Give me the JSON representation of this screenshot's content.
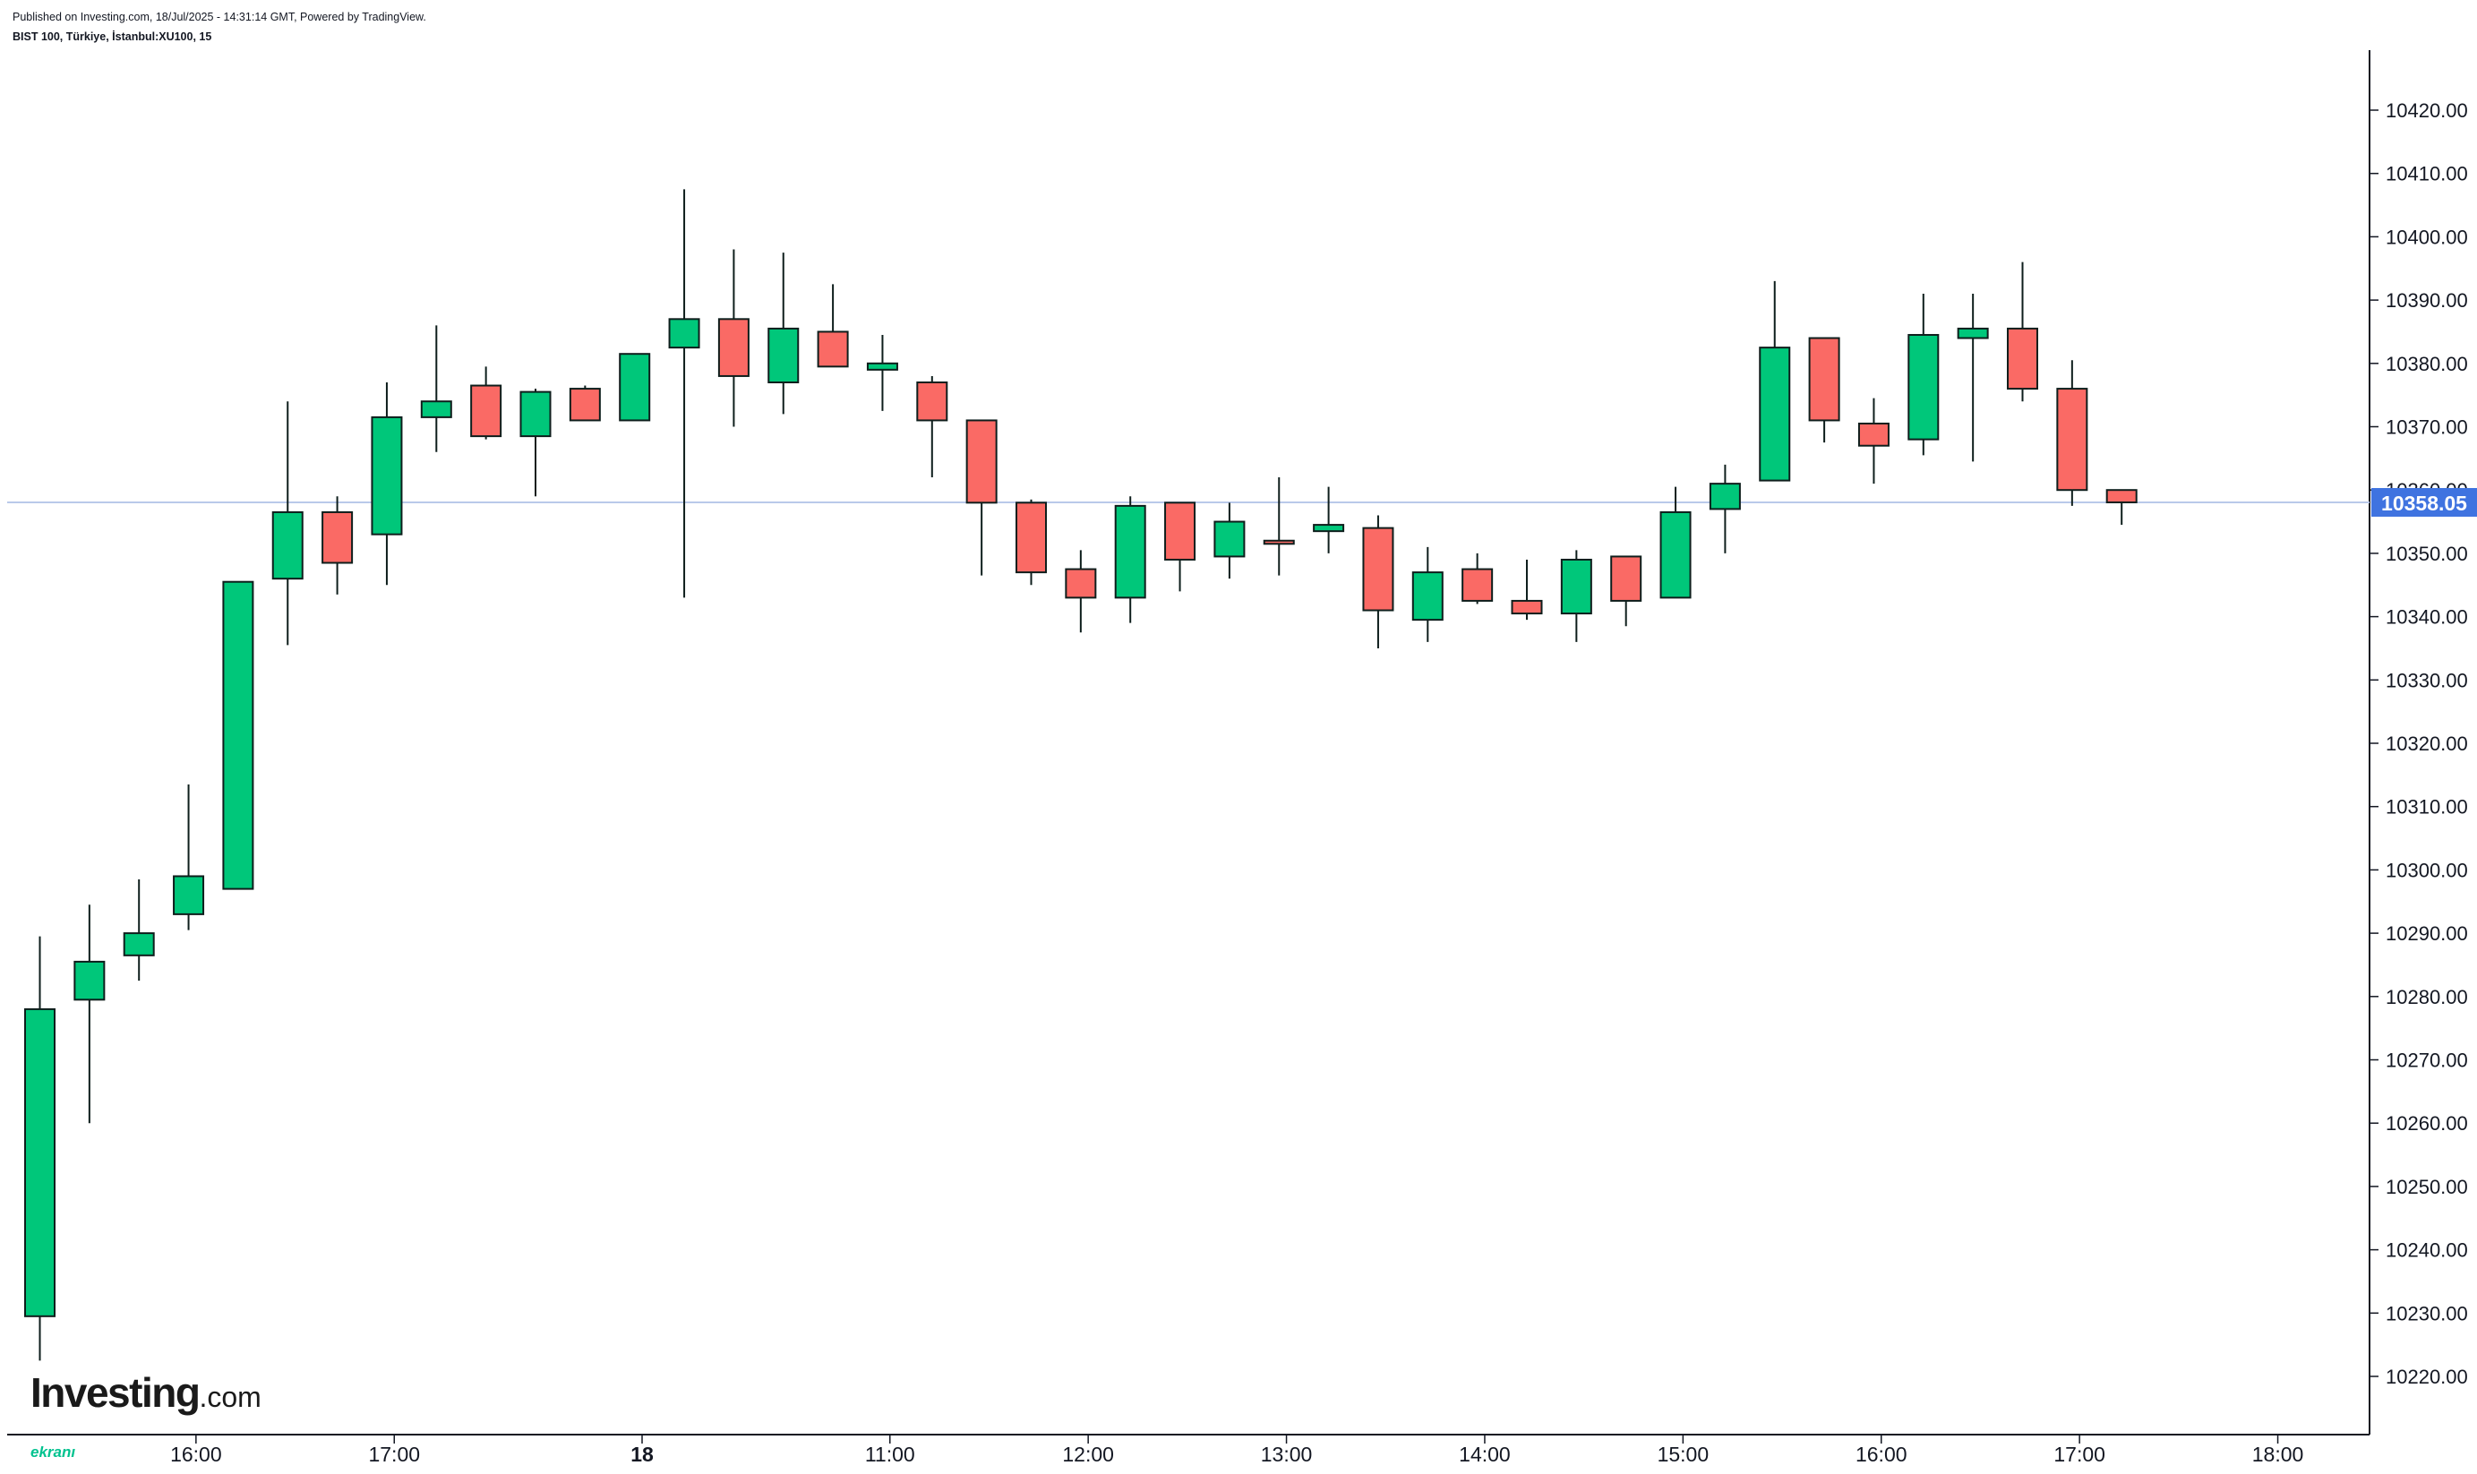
{
  "header": {
    "published": "Published on Investing.com, 18/Jul/2025 - 14:31:14 GMT, Powered by TradingView.",
    "symbol": "BIST 100, Türkiye, İstanbul:XU100, 15"
  },
  "logo": {
    "main": "Investing",
    "suffix": ".com",
    "watermark": "ekranı"
  },
  "colors": {
    "up": "#00c77a",
    "down": "#fa6a65",
    "outline": "#0e1e1c",
    "last_price_line": "#b9c9ea",
    "last_price_tag": "#3f73e0"
  },
  "chart_data": {
    "type": "candlestick",
    "title": "BIST 100, Türkiye, İstanbul:XU100, 15",
    "interval": "15",
    "ylim": [
      10210,
      10430
    ],
    "y_ticks": [
      10220,
      10230,
      10240,
      10250,
      10260,
      10270,
      10280,
      10290,
      10300,
      10310,
      10320,
      10330,
      10340,
      10350,
      10360,
      10370,
      10380,
      10390,
      10400,
      10410,
      10420
    ],
    "y_tick_labels": [
      "10220.00",
      "10230.00",
      "10240.00",
      "10250.00",
      "10260.00",
      "10270.00",
      "10280.00",
      "10290.00",
      "10300.00",
      "10310.00",
      "10320.00",
      "10330.00",
      "10340.00",
      "10350.00",
      "10360.00",
      "10370.00",
      "10380.00",
      "10390.00",
      "10400.00",
      "10410.00",
      "10420.00"
    ],
    "x_ticks": [
      {
        "label": "16:00",
        "slot": 3.15,
        "bold": false
      },
      {
        "label": "17:00",
        "slot": 7.15,
        "bold": false
      },
      {
        "label": "18",
        "slot": 12.15,
        "bold": true
      },
      {
        "label": "11:00",
        "slot": 17.15,
        "bold": false
      },
      {
        "label": "12:00",
        "slot": 21.15,
        "bold": false
      },
      {
        "label": "13:00",
        "slot": 25.15,
        "bold": false
      },
      {
        "label": "14:00",
        "slot": 29.15,
        "bold": false
      },
      {
        "label": "15:00",
        "slot": 33.15,
        "bold": false
      },
      {
        "label": "16:00",
        "slot": 37.15,
        "bold": false
      },
      {
        "label": "17:00",
        "slot": 41.15,
        "bold": false
      },
      {
        "label": "18:00",
        "slot": 45.15,
        "bold": false
      }
    ],
    "candles": [
      {
        "o": 10229.5,
        "h": 10289.5,
        "l": 10222.5,
        "c": 10278.0
      },
      {
        "o": 10279.5,
        "h": 10294.5,
        "l": 10260.0,
        "c": 10285.5
      },
      {
        "o": 10286.5,
        "h": 10298.5,
        "l": 10282.5,
        "c": 10290.0
      },
      {
        "o": 10293.0,
        "h": 10313.5,
        "l": 10290.5,
        "c": 10299.0
      },
      {
        "o": 10297.0,
        "h": 10345.5,
        "l": 10297.0,
        "c": 10345.5
      },
      {
        "o": 10346.0,
        "h": 10374.0,
        "l": 10335.5,
        "c": 10356.5
      },
      {
        "o": 10356.5,
        "h": 10359.0,
        "l": 10343.5,
        "c": 10348.5
      },
      {
        "o": 10353.0,
        "h": 10377.0,
        "l": 10345.0,
        "c": 10371.5
      },
      {
        "o": 10371.5,
        "h": 10386.0,
        "l": 10366.0,
        "c": 10374.0
      },
      {
        "o": 10376.5,
        "h": 10379.5,
        "l": 10368.0,
        "c": 10368.5
      },
      {
        "o": 10368.5,
        "h": 10376.0,
        "l": 10359.0,
        "c": 10375.5
      },
      {
        "o": 10376.0,
        "h": 10376.5,
        "l": 10371.0,
        "c": 10371.0
      },
      {
        "o": 10371.0,
        "h": 10381.5,
        "l": 10371.0,
        "c": 10381.5
      },
      {
        "o": 10382.5,
        "h": 10407.5,
        "l": 10343.0,
        "c": 10387.0
      },
      {
        "o": 10387.0,
        "h": 10398.0,
        "l": 10370.0,
        "c": 10378.0
      },
      {
        "o": 10377.0,
        "h": 10397.5,
        "l": 10372.0,
        "c": 10385.5
      },
      {
        "o": 10385.0,
        "h": 10392.5,
        "l": 10379.5,
        "c": 10379.5
      },
      {
        "o": 10379.0,
        "h": 10384.5,
        "l": 10372.5,
        "c": 10380.0
      },
      {
        "o": 10377.0,
        "h": 10378.0,
        "l": 10362.0,
        "c": 10371.0
      },
      {
        "o": 10371.0,
        "h": 10371.0,
        "l": 10346.5,
        "c": 10358.0
      },
      {
        "o": 10358.0,
        "h": 10358.5,
        "l": 10345.0,
        "c": 10347.0
      },
      {
        "o": 10347.5,
        "h": 10350.5,
        "l": 10337.5,
        "c": 10343.0
      },
      {
        "o": 10343.0,
        "h": 10359.0,
        "l": 10339.0,
        "c": 10357.5
      },
      {
        "o": 10358.0,
        "h": 10358.0,
        "l": 10344.0,
        "c": 10349.0
      },
      {
        "o": 10349.5,
        "h": 10358.0,
        "l": 10346.0,
        "c": 10355.0
      },
      {
        "o": 10352.0,
        "h": 10362.0,
        "l": 10346.5,
        "c": 10351.5
      },
      {
        "o": 10353.5,
        "h": 10360.5,
        "l": 10350.0,
        "c": 10354.5
      },
      {
        "o": 10354.0,
        "h": 10356.0,
        "l": 10335.0,
        "c": 10341.0
      },
      {
        "o": 10339.5,
        "h": 10351.0,
        "l": 10336.0,
        "c": 10347.0
      },
      {
        "o": 10347.5,
        "h": 10350.0,
        "l": 10342.0,
        "c": 10342.5
      },
      {
        "o": 10342.5,
        "h": 10349.0,
        "l": 10339.5,
        "c": 10340.5
      },
      {
        "o": 10340.5,
        "h": 10350.5,
        "l": 10336.0,
        "c": 10349.0
      },
      {
        "o": 10349.5,
        "h": 10349.5,
        "l": 10338.5,
        "c": 10342.5
      },
      {
        "o": 10343.0,
        "h": 10360.5,
        "l": 10343.0,
        "c": 10356.5
      },
      {
        "o": 10357.0,
        "h": 10364.0,
        "l": 10350.0,
        "c": 10361.0
      },
      {
        "o": 10361.5,
        "h": 10393.0,
        "l": 10361.5,
        "c": 10382.5
      },
      {
        "o": 10384.0,
        "h": 10384.0,
        "l": 10367.5,
        "c": 10371.0
      },
      {
        "o": 10370.5,
        "h": 10374.5,
        "l": 10361.0,
        "c": 10367.0
      },
      {
        "o": 10368.0,
        "h": 10391.0,
        "l": 10365.5,
        "c": 10384.5
      },
      {
        "o": 10384.0,
        "h": 10391.0,
        "l": 10364.5,
        "c": 10385.5
      },
      {
        "o": 10385.5,
        "h": 10396.0,
        "l": 10374.0,
        "c": 10376.0
      },
      {
        "o": 10376.0,
        "h": 10380.5,
        "l": 10357.5,
        "c": 10360.0
      },
      {
        "o": 10360.0,
        "h": 10360.0,
        "l": 10354.5,
        "c": 10358.05
      }
    ],
    "last_price": 10358.05,
    "last_price_label": "10358.05"
  }
}
